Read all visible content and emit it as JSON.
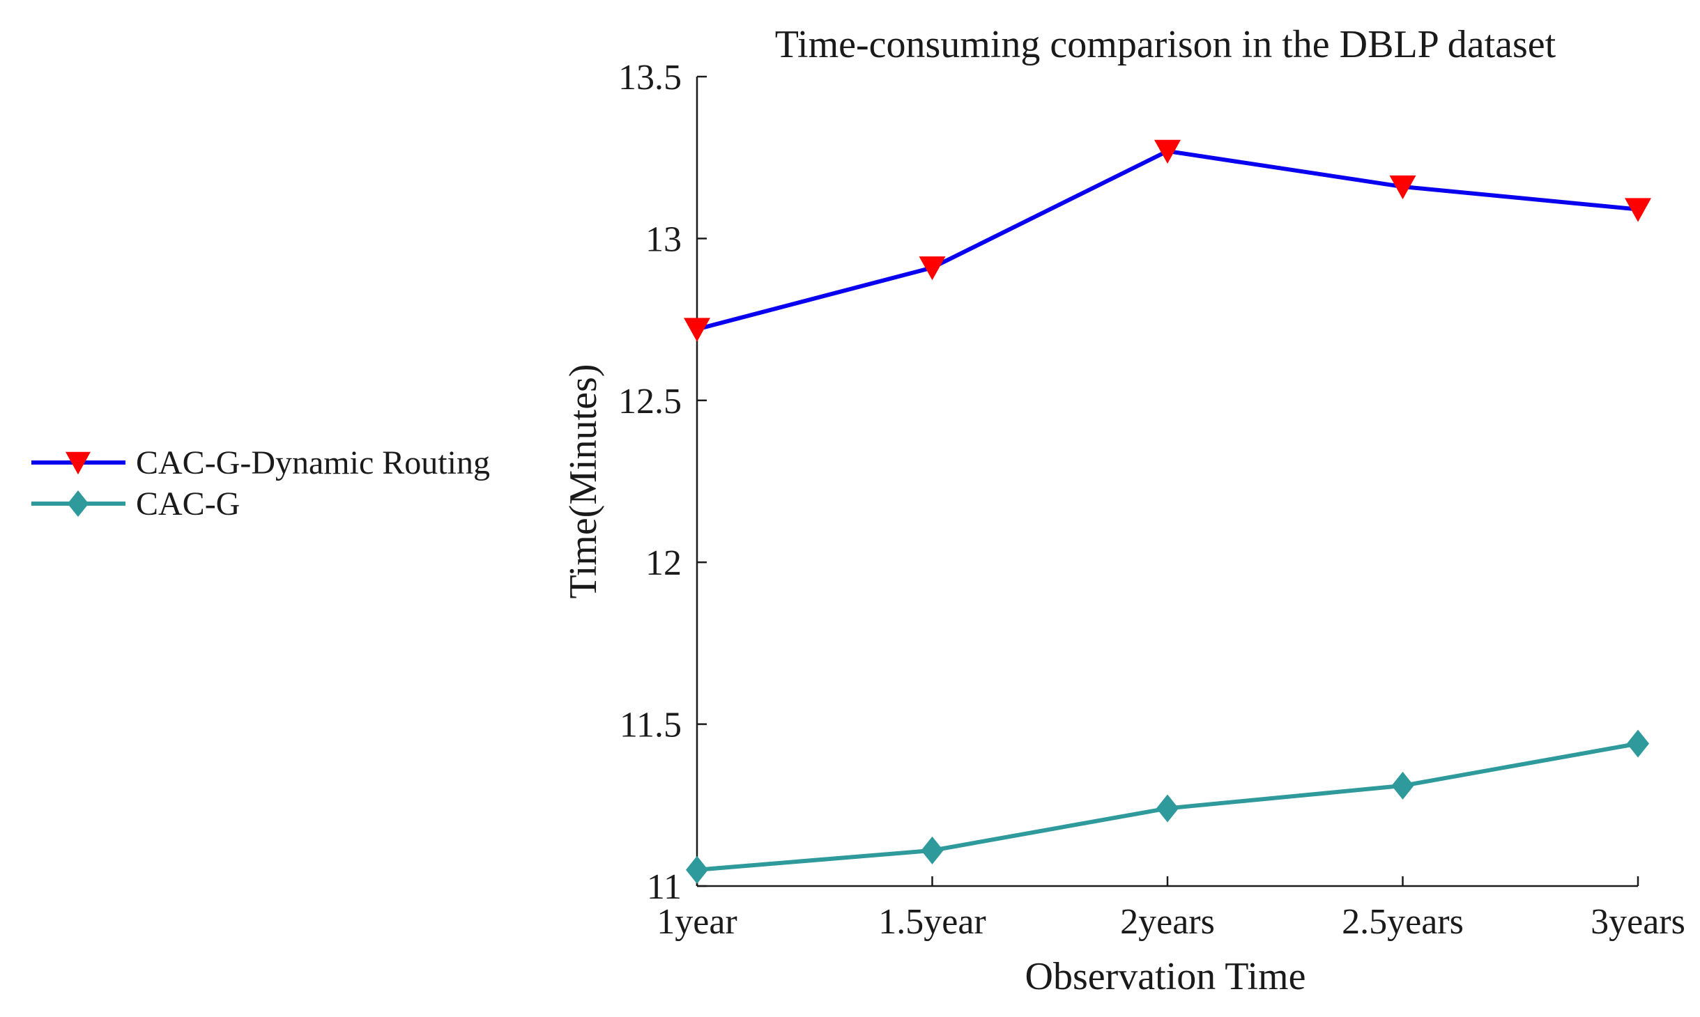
{
  "chart_data": {
    "type": "line",
    "title": "Time-consuming comparison in the DBLP dataset",
    "xlabel": "Observation Time",
    "ylabel": "Time(Minutes)",
    "categories": [
      "1year",
      "1.5year",
      "2years",
      "2.5years",
      "3years"
    ],
    "ylim": [
      11,
      13.5
    ],
    "yticks": [
      11,
      11.5,
      12,
      12.5,
      13,
      13.5
    ],
    "ytick_labels": [
      "11",
      "11.5",
      "12",
      "12.5",
      "13",
      "13.5"
    ],
    "grid": false,
    "legend_position": "left",
    "series": [
      {
        "name": "CAC-G-Dynamic Routing",
        "values": [
          12.72,
          12.91,
          13.27,
          13.16,
          13.09
        ],
        "color": "#0a00f0",
        "marker": "triangle-down",
        "marker_color": "#ff0000"
      },
      {
        "name": "CAC-G",
        "values": [
          11.05,
          11.11,
          11.24,
          11.31,
          11.44
        ],
        "color": "#2e9a9c",
        "marker": "diamond",
        "marker_color": "#2e9a9c"
      }
    ]
  }
}
